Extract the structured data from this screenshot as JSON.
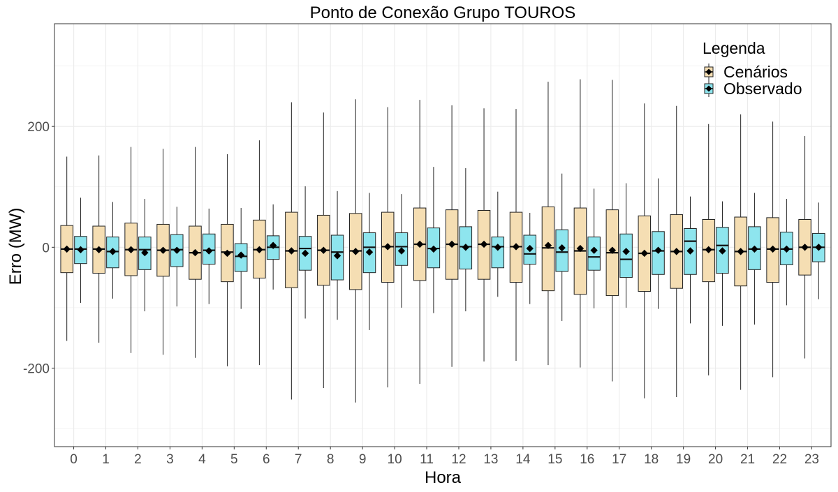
{
  "chart_data": {
    "type": "boxplot",
    "title": "Ponto de Conexão Grupo TOUROS",
    "xlabel": "Hora",
    "ylabel": "Erro (MW)",
    "ylim": [
      -330,
      370
    ],
    "yticks": [
      -200,
      0,
      200
    ],
    "ytick_labels": [
      "-200",
      "0",
      "200"
    ],
    "grid": true,
    "legend": {
      "title": "Legenda",
      "position": "top-right",
      "entries": [
        {
          "name": "Cenários",
          "color": "#F5DEB3"
        },
        {
          "name": "Observado",
          "color": "#8EE5EE"
        }
      ]
    },
    "categories": [
      "0",
      "1",
      "2",
      "3",
      "4",
      "5",
      "6",
      "7",
      "8",
      "9",
      "10",
      "11",
      "12",
      "13",
      "14",
      "15",
      "16",
      "17",
      "18",
      "19",
      "20",
      "21",
      "22",
      "23"
    ],
    "series": [
      {
        "name": "Cenários",
        "color": "#F5DEB3",
        "boxes": [
          {
            "min": -155,
            "q1": -42,
            "median": -3,
            "q3": 36,
            "max": 150,
            "mean": -3
          },
          {
            "min": -158,
            "q1": -43,
            "median": -3,
            "q3": 35,
            "max": 152,
            "mean": -4
          },
          {
            "min": -175,
            "q1": -47,
            "median": -4,
            "q3": 40,
            "max": 166,
            "mean": -4
          },
          {
            "min": -178,
            "q1": -48,
            "median": -5,
            "q3": 38,
            "max": 163,
            "mean": -5
          },
          {
            "min": -183,
            "q1": -53,
            "median": -9,
            "q3": 35,
            "max": 166,
            "mean": -9
          },
          {
            "min": -197,
            "q1": -57,
            "median": -8,
            "q3": 38,
            "max": 154,
            "mean": -10
          },
          {
            "min": -195,
            "q1": -51,
            "median": -4,
            "q3": 45,
            "max": 177,
            "mean": -4
          },
          {
            "min": -252,
            "q1": -67,
            "median": -6,
            "q3": 58,
            "max": 240,
            "mean": -6
          },
          {
            "min": -233,
            "q1": -63,
            "median": -5,
            "q3": 53,
            "max": 223,
            "mean": -5
          },
          {
            "min": -257,
            "q1": -70,
            "median": -6,
            "q3": 56,
            "max": 245,
            "mean": -7
          },
          {
            "min": -232,
            "q1": -58,
            "median": 1,
            "q3": 58,
            "max": 232,
            "mean": 1
          },
          {
            "min": -226,
            "q1": -55,
            "median": 5,
            "q3": 65,
            "max": 244,
            "mean": 5
          },
          {
            "min": -198,
            "q1": -53,
            "median": 5,
            "q3": 62,
            "max": 235,
            "mean": 5
          },
          {
            "min": -189,
            "q1": -53,
            "median": 5,
            "q3": 61,
            "max": 230,
            "mean": 5
          },
          {
            "min": -188,
            "q1": -58,
            "median": 1,
            "q3": 58,
            "max": 229,
            "mean": 1
          },
          {
            "min": -195,
            "q1": -72,
            "median": -1,
            "q3": 67,
            "max": 274,
            "mean": 3
          },
          {
            "min": -199,
            "q1": -78,
            "median": -6,
            "q3": 65,
            "max": 278,
            "mean": -2
          },
          {
            "min": -222,
            "q1": -80,
            "median": -9,
            "q3": 62,
            "max": 277,
            "mean": -5
          },
          {
            "min": -250,
            "q1": -73,
            "median": -10,
            "q3": 52,
            "max": 238,
            "mean": -10
          },
          {
            "min": -248,
            "q1": -68,
            "median": -7,
            "q3": 54,
            "max": 234,
            "mean": -7
          },
          {
            "min": -212,
            "q1": -57,
            "median": -4,
            "q3": 46,
            "max": 204,
            "mean": -4
          },
          {
            "min": -236,
            "q1": -64,
            "median": -7,
            "q3": 50,
            "max": 220,
            "mean": -7
          },
          {
            "min": -215,
            "q1": -58,
            "median": -3,
            "q3": 49,
            "max": 208,
            "mean": -3
          },
          {
            "min": -184,
            "q1": -46,
            "median": 0,
            "q3": 46,
            "max": 184,
            "mean": 0
          }
        ]
      },
      {
        "name": "Observado",
        "color": "#8EE5EE",
        "boxes": [
          {
            "min": -92,
            "q1": -27,
            "median": -3,
            "q3": 18,
            "max": 82,
            "mean": -4
          },
          {
            "min": -85,
            "q1": -34,
            "median": -7,
            "q3": 17,
            "max": 75,
            "mean": -7
          },
          {
            "min": -106,
            "q1": -37,
            "median": -4,
            "q3": 17,
            "max": 80,
            "mean": -9
          },
          {
            "min": -98,
            "q1": -32,
            "median": -4,
            "q3": 21,
            "max": 67,
            "mean": -5
          },
          {
            "min": -94,
            "q1": -28,
            "median": -5,
            "q3": 22,
            "max": 64,
            "mean": -6
          },
          {
            "min": -102,
            "q1": -40,
            "median": -15,
            "q3": 6,
            "max": 65,
            "mean": -13
          },
          {
            "min": -70,
            "q1": -20,
            "median": 0,
            "q3": 19,
            "max": 71,
            "mean": 3
          },
          {
            "min": -118,
            "q1": -38,
            "median": -2,
            "q3": 18,
            "max": 101,
            "mean": -10
          },
          {
            "min": -120,
            "q1": -54,
            "median": -8,
            "q3": 20,
            "max": 93,
            "mean": -14
          },
          {
            "min": -137,
            "q1": -42,
            "median": 0,
            "q3": 24,
            "max": 90,
            "mean": -8
          },
          {
            "min": -100,
            "q1": -30,
            "median": 1,
            "q3": 24,
            "max": 88,
            "mean": -6
          },
          {
            "min": -109,
            "q1": -34,
            "median": -2,
            "q3": 32,
            "max": 133,
            "mean": -3
          },
          {
            "min": -106,
            "q1": -36,
            "median": 1,
            "q3": 34,
            "max": 131,
            "mean": 0
          },
          {
            "min": -82,
            "q1": -34,
            "median": 1,
            "q3": 17,
            "max": 92,
            "mean": 0
          },
          {
            "min": -94,
            "q1": -28,
            "median": -11,
            "q3": 20,
            "max": 57,
            "mean": -2
          },
          {
            "min": -122,
            "q1": -40,
            "median": -8,
            "q3": 29,
            "max": 122,
            "mean": -1
          },
          {
            "min": -101,
            "q1": -38,
            "median": -16,
            "q3": 17,
            "max": 97,
            "mean": -5
          },
          {
            "min": -100,
            "q1": -50,
            "median": -20,
            "q3": 22,
            "max": 106,
            "mean": -7
          },
          {
            "min": -102,
            "q1": -45,
            "median": -6,
            "q3": 26,
            "max": 114,
            "mean": -5
          },
          {
            "min": -126,
            "q1": -45,
            "median": 10,
            "q3": 31,
            "max": 84,
            "mean": -6
          },
          {
            "min": -130,
            "q1": -43,
            "median": 3,
            "q3": 33,
            "max": 76,
            "mean": -6
          },
          {
            "min": -128,
            "q1": -37,
            "median": -3,
            "q3": 34,
            "max": 90,
            "mean": -3
          },
          {
            "min": -96,
            "q1": -29,
            "median": -3,
            "q3": 25,
            "max": 80,
            "mean": -3
          },
          {
            "min": -86,
            "q1": -24,
            "median": 0,
            "q3": 23,
            "max": 74,
            "mean": 0
          }
        ]
      }
    ]
  }
}
